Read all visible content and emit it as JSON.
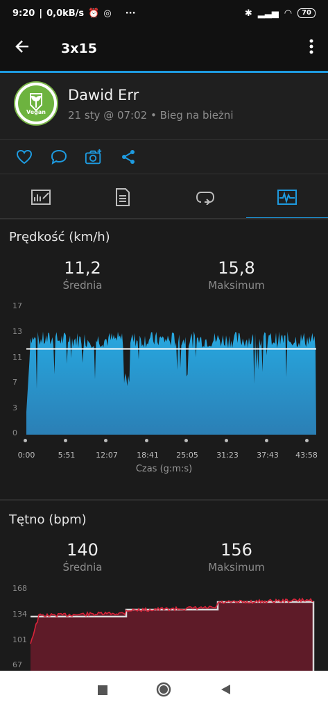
{
  "status": {
    "time": "9:20",
    "speed": "0,0kB/s",
    "dots": "···",
    "battery": "70"
  },
  "appbar": {
    "title": "3x15"
  },
  "profile": {
    "name": "Dawid Err",
    "meta": "21 sty @ 07:02 • Bieg na bieżni",
    "avatar_text": "Vegan"
  },
  "speed": {
    "title": "Prędkość (km/h)",
    "avg_value": "11,2",
    "avg_label": "Średnia",
    "max_value": "15,8",
    "max_label": "Maksimum",
    "yticks": [
      "17",
      "13",
      "11",
      "7",
      "3",
      "0"
    ],
    "xticks": [
      "0:00",
      "5:51",
      "12:07",
      "18:41",
      "25:05",
      "31:23",
      "37:43",
      "43:58"
    ],
    "xlabel": "Czas (g:m:s)"
  },
  "hr": {
    "title": "Tętno (bpm)",
    "avg_value": "140",
    "avg_label": "Średnia",
    "max_value": "156",
    "max_label": "Maksimum",
    "yticks": [
      "168",
      "134",
      "101",
      "67"
    ]
  },
  "colors": {
    "accent": "#1e9be0",
    "speed_fill": "#2aa3dd",
    "hr_fill": "#6b1f2c",
    "hr_line": "#d8243a"
  }
}
